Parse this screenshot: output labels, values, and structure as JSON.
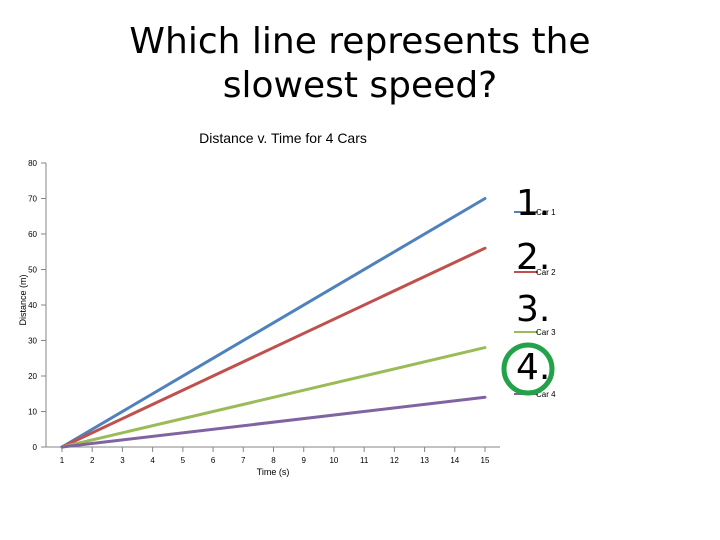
{
  "slide": {
    "title": "Which line represents the slowest speed?"
  },
  "chart_data": {
    "type": "line",
    "title": "Distance v. Time for 4 Cars",
    "xlabel": "Time (s)",
    "ylabel": "Distance (m)",
    "x": [
      1,
      15
    ],
    "xticks": [
      "1",
      "2",
      "3",
      "4",
      "5",
      "6",
      "7",
      "8",
      "9",
      "10",
      "11",
      "12",
      "13",
      "14",
      "15"
    ],
    "yticks": [
      "0",
      "10",
      "20",
      "30",
      "40",
      "50",
      "60",
      "70",
      "80"
    ],
    "ylim": [
      0,
      80
    ],
    "grid": false,
    "legend": "right",
    "series": [
      {
        "name": "Car 1",
        "values": [
          0,
          70
        ],
        "color": "#4f81bd"
      },
      {
        "name": "Car 2",
        "values": [
          0,
          56
        ],
        "color": "#c0504d"
      },
      {
        "name": "Car 3",
        "values": [
          0,
          28
        ],
        "color": "#9bbb59"
      },
      {
        "name": "Car 4",
        "values": [
          0,
          14
        ],
        "color": "#8064a2"
      }
    ]
  },
  "annotations": {
    "numbers": [
      "1.",
      "2.",
      "3.",
      "4."
    ],
    "highlight_color": "#22a34a"
  }
}
